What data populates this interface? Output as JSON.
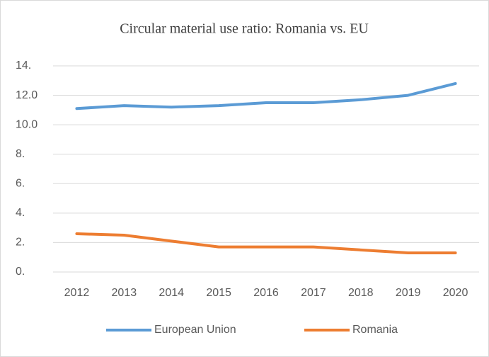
{
  "chart_data": {
    "type": "line",
    "title": "Circular material use ratio: Romania vs. EU",
    "categories": [
      "2012",
      "2013",
      "2014",
      "2015",
      "2016",
      "2017",
      "2018",
      "2019",
      "2020"
    ],
    "series": [
      {
        "name": "European Union",
        "color": "#5b9bd5",
        "values": [
          11.1,
          11.3,
          11.2,
          11.3,
          11.5,
          11.5,
          11.7,
          12.0,
          12.8
        ]
      },
      {
        "name": "Romania",
        "color": "#ed7d31",
        "values": [
          2.6,
          2.5,
          2.1,
          1.7,
          1.7,
          1.7,
          1.5,
          1.3,
          1.3
        ]
      }
    ],
    "ylim": [
      0,
      14
    ],
    "yticks": [
      {
        "value": 0,
        "label": "0."
      },
      {
        "value": 2,
        "label": "2."
      },
      {
        "value": 4,
        "label": "4."
      },
      {
        "value": 6,
        "label": "6."
      },
      {
        "value": 8,
        "label": "8."
      },
      {
        "value": 10,
        "label": "10.0"
      },
      {
        "value": 12,
        "label": "12.0"
      },
      {
        "value": 14,
        "label": "14."
      }
    ],
    "grid": true,
    "legend": "bottom"
  }
}
